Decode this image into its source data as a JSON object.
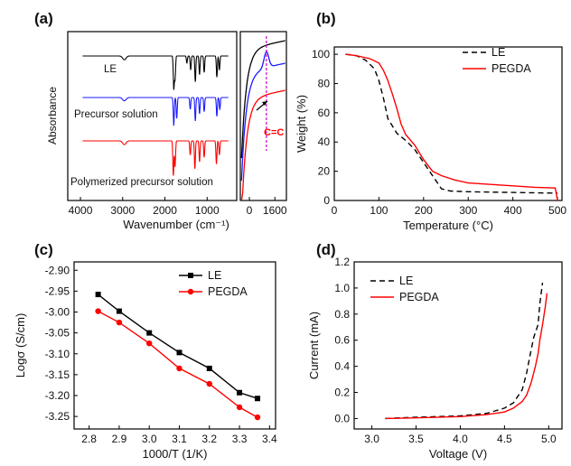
{
  "chart_data": [
    {
      "panel_label": "(a)",
      "type": "line",
      "title": "",
      "xlabel": "Wavenumber (cm⁻¹)",
      "ylabel": "Absorbance",
      "x_reversed": true,
      "xlim": [
        4300,
        300
      ],
      "x_ticks": [
        "4000",
        "3000",
        "2000",
        "1000",
        "0"
      ],
      "inset": {
        "xlim": [
          1750,
          1550
        ],
        "x_ticks": [
          "1600"
        ],
        "annotation": "C=C",
        "marker_line": 1637
      },
      "series": [
        {
          "name": "LE",
          "color": "#000000",
          "peaks": [
            {
              "x": 2960,
              "h": 0.08
            },
            {
              "x": 1790,
              "h": 0.7
            },
            {
              "x": 1760,
              "h": 0.5
            },
            {
              "x": 1480,
              "h": 0.15
            },
            {
              "x": 1390,
              "h": 0.3
            },
            {
              "x": 1280,
              "h": 0.55
            },
            {
              "x": 1180,
              "h": 0.4
            },
            {
              "x": 1070,
              "h": 0.35
            },
            {
              "x": 770,
              "h": 0.45
            },
            {
              "x": 710,
              "h": 0.3
            }
          ]
        },
        {
          "name": "Precursor solution",
          "color": "#1a1aff",
          "peaks": [
            {
              "x": 2960,
              "h": 0.07
            },
            {
              "x": 1790,
              "h": 0.6
            },
            {
              "x": 1720,
              "h": 0.45
            },
            {
              "x": 1400,
              "h": 0.25
            },
            {
              "x": 1280,
              "h": 0.5
            },
            {
              "x": 1180,
              "h": 0.35
            },
            {
              "x": 1070,
              "h": 0.3
            },
            {
              "x": 770,
              "h": 0.4
            },
            {
              "x": 700,
              "h": 0.25
            }
          ]
        },
        {
          "name": "Polymerized precursor solution",
          "color": "#ff0000",
          "peaks": [
            {
              "x": 2960,
              "h": 0.08
            },
            {
              "x": 1800,
              "h": 0.75
            },
            {
              "x": 1760,
              "h": 0.55
            },
            {
              "x": 1400,
              "h": 0.3
            },
            {
              "x": 1290,
              "h": 0.6
            },
            {
              "x": 1180,
              "h": 0.45
            },
            {
              "x": 1070,
              "h": 0.35
            },
            {
              "x": 780,
              "h": 0.5
            },
            {
              "x": 710,
              "h": 0.3
            }
          ]
        }
      ]
    },
    {
      "panel_label": "(b)",
      "type": "line",
      "title": "",
      "xlabel": "Temperature (°C)",
      "ylabel": "Weight (%)",
      "xlim": [
        0,
        510
      ],
      "ylim": [
        0,
        105
      ],
      "x_ticks": [
        0,
        100,
        200,
        300,
        400,
        500
      ],
      "y_ticks": [
        0,
        20,
        40,
        60,
        80,
        100
      ],
      "legend": "top-right",
      "series": [
        {
          "name": "LE",
          "color": "#000000",
          "dash": "6,4",
          "x": [
            25,
            50,
            70,
            90,
            100,
            110,
            120,
            140,
            160,
            180,
            200,
            220,
            240,
            260,
            300,
            400,
            500
          ],
          "y": [
            100,
            99,
            96,
            90,
            82,
            70,
            56,
            46,
            41,
            35,
            26,
            17,
            8,
            6.5,
            6,
            5.5,
            5
          ]
        },
        {
          "name": "PEGDA",
          "color": "#ff0000",
          "dash": "",
          "x": [
            25,
            50,
            80,
            100,
            110,
            120,
            130,
            140,
            150,
            160,
            180,
            200,
            220,
            240,
            270,
            300,
            350,
            400,
            450,
            495,
            500
          ],
          "y": [
            100,
            99,
            97,
            94,
            89,
            82,
            73,
            63,
            52,
            45,
            38,
            28,
            20,
            17,
            14,
            12,
            11,
            10,
            9,
            8.5,
            0
          ]
        }
      ]
    },
    {
      "panel_label": "(c)",
      "type": "line",
      "title": "",
      "xlabel": "1000/T (1/K)",
      "ylabel": "Logσ (S/cm)",
      "xlim": [
        2.75,
        3.42
      ],
      "ylim": [
        -3.28,
        -2.88
      ],
      "x_ticks": [
        "2.8",
        "2.9",
        "3.0",
        "3.1",
        "3.2",
        "3.3",
        "3.4"
      ],
      "y_ticks": [
        "-2.90",
        "-2.95",
        "-3.00",
        "-3.05",
        "-3.10",
        "-3.15",
        "-3.20",
        "-3.25"
      ],
      "legend": "top-right",
      "series": [
        {
          "name": "LE",
          "color": "#000000",
          "marker": "square",
          "x": [
            2.83,
            2.9,
            3.0,
            3.1,
            3.2,
            3.3,
            3.36
          ],
          "y": [
            -2.958,
            -2.998,
            -3.05,
            -3.097,
            -3.135,
            -3.193,
            -3.207
          ]
        },
        {
          "name": "PEGDA",
          "color": "#ff0000",
          "marker": "circle",
          "x": [
            2.83,
            2.9,
            3.0,
            3.1,
            3.2,
            3.3,
            3.36
          ],
          "y": [
            -2.998,
            -3.025,
            -3.075,
            -3.135,
            -3.172,
            -3.228,
            -3.252
          ]
        }
      ]
    },
    {
      "panel_label": "(d)",
      "type": "line",
      "title": "",
      "xlabel": "Voltage (V)",
      "ylabel": "Current (mA)",
      "xlim": [
        2.8,
        5.15
      ],
      "ylim": [
        -0.08,
        1.2
      ],
      "x_ticks": [
        "3.0",
        "3.5",
        "4.0",
        "4.5",
        "5.0"
      ],
      "y_ticks": [
        "0.0",
        "0.2",
        "0.4",
        "0.6",
        "0.8",
        "1.0",
        "1.2"
      ],
      "legend": "top-left",
      "series": [
        {
          "name": "LE",
          "color": "#000000",
          "dash": "6,4",
          "x": [
            3.15,
            3.5,
            4.0,
            4.3,
            4.5,
            4.6,
            4.7,
            4.75,
            4.8,
            4.83,
            4.85,
            4.88,
            4.9,
            4.93
          ],
          "y": [
            0.0,
            0.01,
            0.02,
            0.04,
            0.08,
            0.12,
            0.22,
            0.35,
            0.52,
            0.62,
            0.66,
            0.72,
            0.88,
            1.04
          ]
        },
        {
          "name": "PEGDA",
          "color": "#ff0000",
          "dash": "",
          "x": [
            3.15,
            3.5,
            4.0,
            4.3,
            4.5,
            4.6,
            4.7,
            4.75,
            4.8,
            4.85,
            4.88,
            4.9,
            4.93,
            4.96,
            4.98
          ],
          "y": [
            0.0,
            0.005,
            0.015,
            0.03,
            0.05,
            0.08,
            0.13,
            0.18,
            0.27,
            0.4,
            0.5,
            0.6,
            0.72,
            0.85,
            0.96
          ]
        }
      ]
    }
  ]
}
